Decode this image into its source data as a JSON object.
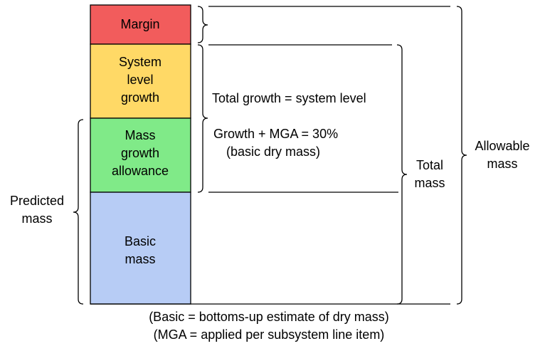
{
  "blocks": [
    {
      "lines": [
        "Margin"
      ]
    },
    {
      "lines": [
        "System",
        "level",
        "growth"
      ]
    },
    {
      "lines": [
        "Mass",
        "growth",
        "allowance"
      ]
    },
    {
      "lines": [
        "Basic",
        "mass"
      ]
    }
  ],
  "annotations": {
    "total_growth": "Total growth = system level",
    "growth_mga": [
      "Growth + MGA = 30%",
      "(basic dry mass)"
    ],
    "total_mass": [
      "Total",
      "mass"
    ],
    "allowable_mass": [
      "Allowable",
      "mass"
    ],
    "predicted_mass": [
      "Predicted",
      "mass"
    ]
  },
  "footnotes": [
    "(Basic = bottoms-up estimate of dry mass)",
    "(MGA = applied per subsystem line item)"
  ]
}
